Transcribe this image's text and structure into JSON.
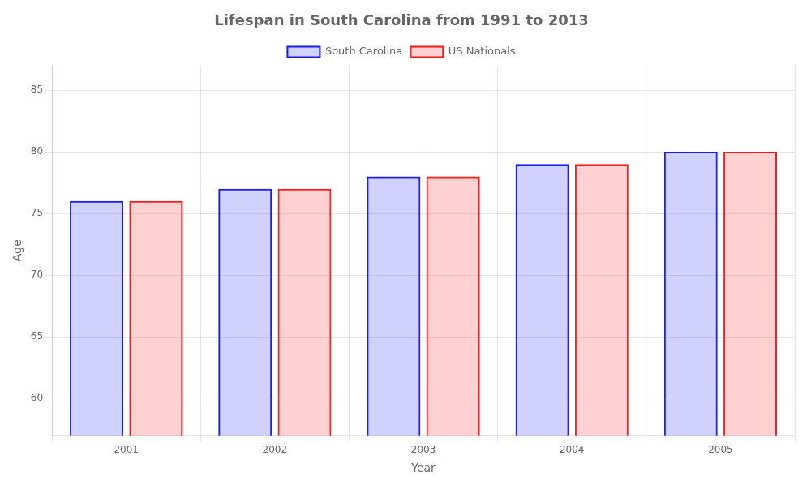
{
  "chart_data": {
    "type": "bar",
    "title": "Lifespan in South Carolina from 1991 to 2013",
    "xlabel": "Year",
    "ylabel": "Age",
    "categories": [
      "2001",
      "2002",
      "2003",
      "2004",
      "2005"
    ],
    "series": [
      {
        "name": "South Carolina",
        "color": "#1a1aff",
        "values": [
          76,
          77,
          78,
          79,
          80
        ]
      },
      {
        "name": "US Nationals",
        "color": "#ff1a1a",
        "values": [
          76,
          77,
          78,
          79,
          80
        ]
      }
    ],
    "ylim": [
      57,
      87
    ],
    "yticks": [
      60,
      65,
      70,
      75,
      80,
      85
    ],
    "grid": true,
    "legend": "top"
  }
}
